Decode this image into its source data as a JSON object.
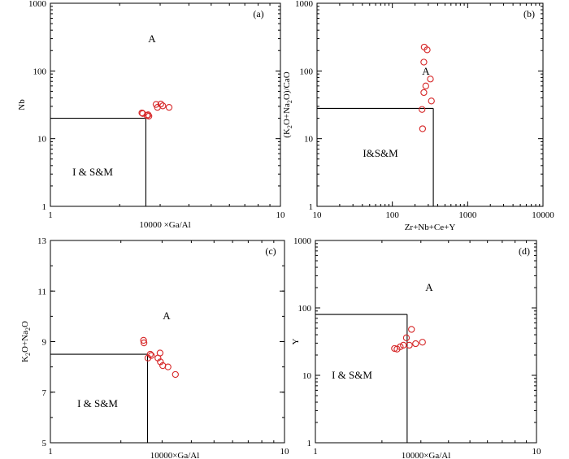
{
  "colors": {
    "axis": "#000000",
    "marker": "#d62728",
    "background": "#ffffff"
  },
  "chart_data": [
    {
      "id": "a",
      "type": "scatter",
      "panel_label": "(a)",
      "xscale": "log",
      "yscale": "log",
      "xlim": [
        1,
        10
      ],
      "ylim": [
        1,
        1000
      ],
      "xticks": [
        1,
        10
      ],
      "xtick_labels": [
        "1",
        "10"
      ],
      "yticks": [
        1,
        10,
        100,
        1000
      ],
      "ytick_labels": [
        "1",
        "10",
        "100",
        "1000"
      ],
      "xlabel": "10000 ×Ga/Al",
      "ylabel": "Nb",
      "boundary": {
        "x": 2.6,
        "y": 20
      },
      "region_labels": [
        {
          "text": "A",
          "x": 4.4,
          "y": 310
        },
        {
          "text": "I & S&M",
          "x": 1.9,
          "y": 2.7
        }
      ],
      "points": [
        [
          2.5,
          24
        ],
        [
          2.52,
          23.5
        ],
        [
          2.63,
          22
        ],
        [
          2.68,
          21.5
        ],
        [
          2.66,
          22.5
        ],
        [
          2.88,
          32
        ],
        [
          2.92,
          29
        ],
        [
          3.02,
          32.5
        ],
        [
          3.08,
          30.5
        ],
        [
          3.28,
          29
        ]
      ]
    },
    {
      "id": "b",
      "type": "scatter",
      "panel_label": "(b)",
      "xscale": "log",
      "yscale": "log",
      "xlim": [
        10,
        10000
      ],
      "ylim": [
        1,
        1000
      ],
      "xticks": [
        10,
        100,
        1000,
        10000
      ],
      "xtick_labels": [
        "10",
        "100",
        "1000",
        "10000"
      ],
      "yticks": [
        1,
        10,
        100,
        1000
      ],
      "ytick_labels": [
        "1",
        "10",
        "100",
        "1000"
      ],
      "xlabel": "Zr+Nb+Ce+Y",
      "ylabel_parts": [
        "(K",
        "2",
        "O+Na",
        "2",
        "O)/CaO"
      ],
      "boundary": {
        "x": 350,
        "y": 28
      },
      "region_labels": [
        {
          "text": "A",
          "x": 300,
          "y": 95
        },
        {
          "text": "I&S&M",
          "x": 52,
          "y": 6
        }
      ],
      "points": [
        [
          265,
          225
        ],
        [
          290,
          205
        ],
        [
          262,
          135
        ],
        [
          320,
          76
        ],
        [
          278,
          60
        ],
        [
          262,
          48
        ],
        [
          330,
          36
        ],
        [
          248,
          27
        ],
        [
          252,
          14
        ]
      ]
    },
    {
      "id": "c",
      "type": "scatter",
      "panel_label": "(c)",
      "xscale": "log",
      "yscale": "linear",
      "xlim": [
        1,
        10
      ],
      "ylim": [
        5,
        13
      ],
      "xticks": [
        1,
        10
      ],
      "xtick_labels": [
        "1",
        "10"
      ],
      "yticks": [
        5,
        7,
        9,
        11,
        13
      ],
      "ytick_labels": [
        "5",
        "7",
        "9",
        "11",
        "13"
      ],
      "xlabel": "10000×Ga/Al",
      "ylabel_parts": [
        "K",
        "2",
        "O+Na",
        "2",
        "O"
      ],
      "boundary": {
        "x": 2.6,
        "y": 8.5
      },
      "region_labels": [
        {
          "text": "A",
          "x": 4.3,
          "y": 10.1
        },
        {
          "text": "I & S&M",
          "x": 1.6,
          "y": 6.05
        }
      ],
      "points": [
        [
          2.5,
          9.05
        ],
        [
          2.51,
          8.95
        ],
        [
          2.67,
          8.5
        ],
        [
          2.7,
          8.45
        ],
        [
          2.61,
          8.35
        ],
        [
          2.88,
          8.35
        ],
        [
          2.95,
          8.2
        ],
        [
          3.02,
          8.05
        ],
        [
          2.94,
          8.55
        ],
        [
          3.18,
          8.0
        ],
        [
          3.42,
          7.7
        ]
      ]
    },
    {
      "id": "d",
      "type": "scatter",
      "panel_label": "(d)",
      "xscale": "log",
      "yscale": "log",
      "xlim": [
        1,
        10
      ],
      "ylim": [
        1,
        1000
      ],
      "xticks": [
        1,
        10
      ],
      "xtick_labels": [
        "1",
        "10"
      ],
      "yticks": [
        1,
        10,
        100,
        1000
      ],
      "ytick_labels": [
        "1",
        "10",
        "100",
        "1000"
      ],
      "xlabel": "10000×Ga/Al",
      "ylabel": "Y",
      "boundary": {
        "x": 2.6,
        "y": 80
      },
      "region_labels": [
        {
          "text": "A",
          "x": 4.2,
          "y": 220
        },
        {
          "text": "I & S&M",
          "x": 1.6,
          "y": 15.5
        }
      ],
      "points": [
        [
          2.28,
          25
        ],
        [
          2.34,
          24.5
        ],
        [
          2.42,
          26.5
        ],
        [
          2.5,
          28
        ],
        [
          2.58,
          36
        ],
        [
          2.66,
          28
        ],
        [
          2.72,
          48
        ],
        [
          2.84,
          29.5
        ],
        [
          3.05,
          31
        ]
      ]
    }
  ]
}
